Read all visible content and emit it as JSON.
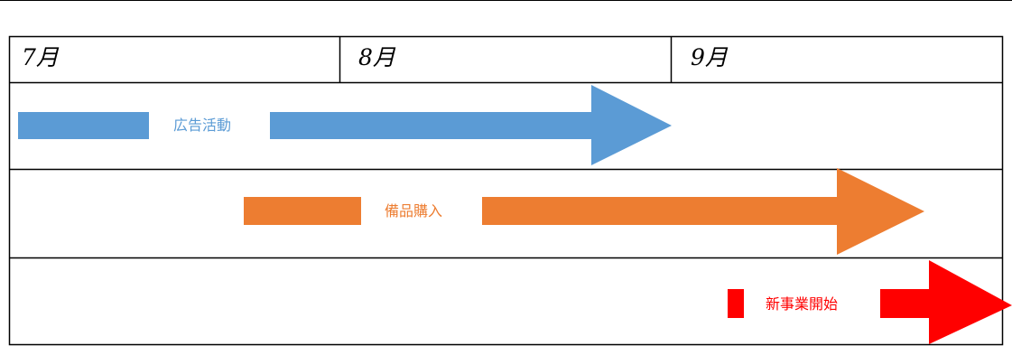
{
  "months": [
    "7月",
    "8月",
    "9月"
  ],
  "tasks": [
    {
      "label": "広告活動",
      "color": "#5b9bd5",
      "start_month": "7月",
      "end_month": "8月"
    },
    {
      "label": "備品購入",
      "color": "#ed7d31",
      "start_month": "7月",
      "end_month": "9月"
    },
    {
      "label": "新事業開始",
      "color": "#ff0000",
      "start_month": "9月",
      "end_month": "9月"
    }
  ]
}
